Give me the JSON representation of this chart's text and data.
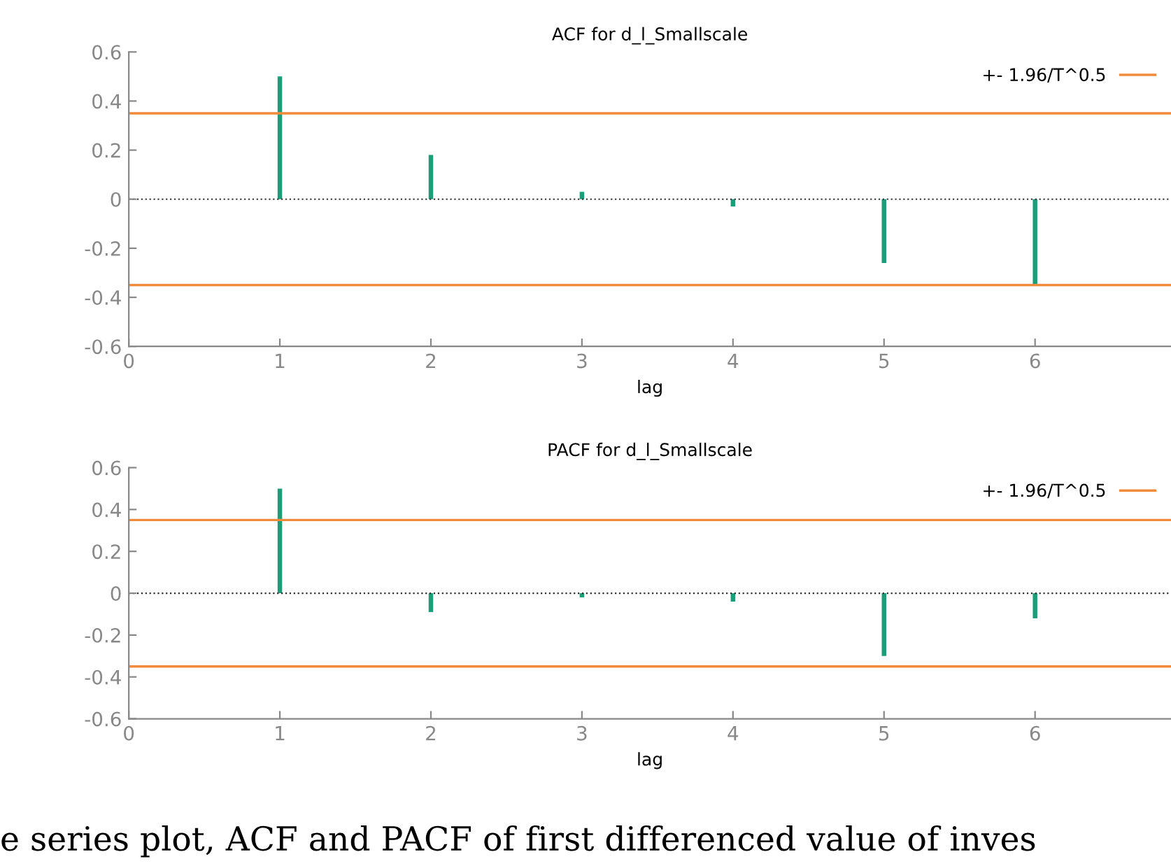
{
  "chart_data": [
    {
      "type": "bar",
      "title": "ACF for d_l_Smallscale",
      "xlabel": "lag",
      "x": [
        1,
        2,
        3,
        4,
        5,
        6
      ],
      "series": [
        {
          "color": "#1b9e77",
          "values": [
            0.5,
            0.18,
            0.03,
            -0.03,
            -0.26,
            -0.35
          ]
        }
      ],
      "xlim": [
        0,
        6.9
      ],
      "xticks": [
        0,
        1,
        2,
        3,
        4,
        5,
        6
      ],
      "ylim": [
        -0.6,
        0.6
      ],
      "yticks": [
        -0.6,
        -0.4,
        -0.2,
        0,
        0.2,
        0.4,
        0.6
      ],
      "ref_lines": [
        {
          "axis": "y",
          "value": 0.35,
          "label": "+- 1.96/T^0.5",
          "color": "#f08a3c"
        },
        {
          "axis": "y",
          "value": -0.35,
          "color": "#f08a3c"
        },
        {
          "axis": "y",
          "value": 0,
          "color": "#333333",
          "line_style": "dotted"
        }
      ],
      "legend": "top right",
      "grid": false
    },
    {
      "type": "bar",
      "title": "PACF for d_l_Smallscale",
      "xlabel": "lag",
      "x": [
        1,
        2,
        3,
        4,
        5,
        6
      ],
      "series": [
        {
          "color": "#1b9e77",
          "values": [
            0.5,
            -0.09,
            -0.02,
            -0.04,
            -0.3,
            -0.12
          ]
        }
      ],
      "xlim": [
        0,
        6.9
      ],
      "xticks": [
        0,
        1,
        2,
        3,
        4,
        5,
        6
      ],
      "ylim": [
        -0.6,
        0.6
      ],
      "yticks": [
        -0.6,
        -0.4,
        -0.2,
        0,
        0.2,
        0.4,
        0.6
      ],
      "ref_lines": [
        {
          "axis": "y",
          "value": 0.35,
          "label": "+- 1.96/T^0.5",
          "color": "#f08a3c"
        },
        {
          "axis": "y",
          "value": -0.35,
          "color": "#f08a3c"
        },
        {
          "axis": "y",
          "value": 0,
          "color": "#333333",
          "line_style": "dotted"
        }
      ],
      "legend": "top right",
      "grid": false,
      "annotations": [
        "e series plot, ACF and PACF of first differenced value of inves"
      ]
    }
  ]
}
